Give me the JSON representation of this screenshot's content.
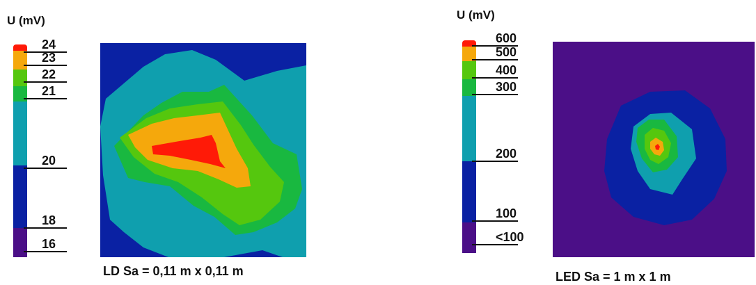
{
  "chart_data": [
    {
      "type": "heatmap",
      "title": "",
      "colorbar_label": "U (mV)",
      "caption": "LD  Sa = 0,11 m x 0,11 m",
      "colorbar_ticks": [
        "24",
        "23",
        "22",
        "21",
        "20",
        "18",
        "16"
      ],
      "color_levels": [
        {
          "min": 0,
          "color": "#4b0f87"
        },
        {
          "min": 16,
          "color": "#0a21a3"
        },
        {
          "min": 20,
          "color": "#0f9fae"
        },
        {
          "min": 21,
          "color": "#19b840"
        },
        {
          "min": 22,
          "color": "#55c70e"
        },
        {
          "min": 23,
          "color": "#f5a80c"
        },
        {
          "min": 23.6,
          "color": "#ff1a07"
        }
      ]
    },
    {
      "type": "heatmap",
      "title": "",
      "colorbar_label": "U (mV)",
      "caption": "LED  Sa = 1 m x 1 m",
      "colorbar_ticks": [
        "600",
        "500",
        "400",
        "300",
        "200",
        "100",
        "<100"
      ],
      "color_levels": [
        {
          "min": 0,
          "color": "#4b0f87"
        },
        {
          "min": 100,
          "color": "#0a21a3"
        },
        {
          "min": 200,
          "color": "#0f9fae"
        },
        {
          "min": 300,
          "color": "#19b840"
        },
        {
          "min": 400,
          "color": "#55c70e"
        },
        {
          "min": 500,
          "color": "#f5a80c"
        },
        {
          "min": 580,
          "color": "#ff1a07"
        }
      ]
    }
  ]
}
